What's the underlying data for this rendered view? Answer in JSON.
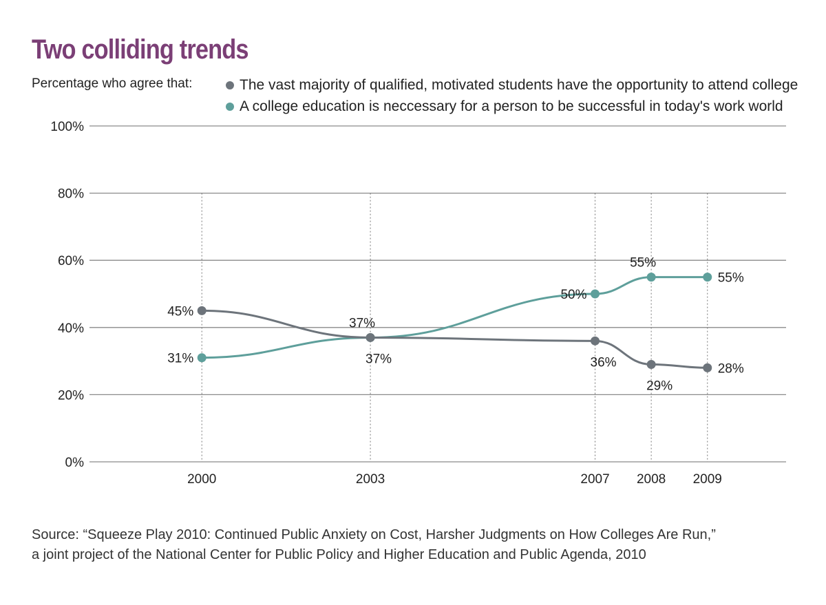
{
  "title": "Two colliding trends",
  "subtitle": "Percentage who agree that:",
  "source": {
    "line1": "Source: “Squeeze Play 2010: Continued Public Anxiety on Cost, Harsher Judgments on How Colleges Are Run,”",
    "line2": "a joint project of the National Center for Public Policy and Higher Education and Public Agenda, 2010"
  },
  "colors": {
    "title": "#7b3f76",
    "series_opportunity": "#6d747b",
    "series_necessary": "#5e9f9b",
    "grid": "#8a8a8a",
    "text": "#222222"
  },
  "chart_data": {
    "type": "line",
    "title": "Two colliding trends",
    "x": [
      2000,
      2003,
      2007,
      2008,
      2009
    ],
    "x_tick_labels": [
      "2000",
      "2003",
      "2007",
      "2008",
      "2009"
    ],
    "xlim": [
      1998,
      2010.4
    ],
    "ylim": [
      0,
      100
    ],
    "y_ticks": [
      0,
      20,
      40,
      60,
      80,
      100
    ],
    "y_tick_labels": [
      "0%",
      "20%",
      "40%",
      "60%",
      "80%",
      "100%"
    ],
    "grid": "horizontal",
    "legend_position": "top",
    "series": [
      {
        "name": "The vast majority of qualified, motivated students have the opportunity to attend college",
        "color": "#6d747b",
        "values": [
          45,
          37,
          36,
          29,
          28
        ],
        "labels": [
          "45%",
          "37%",
          "36%",
          "29%",
          "28%"
        ],
        "label_side": [
          "left",
          "below",
          "below",
          "below",
          "right"
        ]
      },
      {
        "name": "A college education is neccessary for a person to be successful in today's work world",
        "color": "#5e9f9b",
        "values": [
          31,
          37,
          50,
          55,
          55
        ],
        "labels": [
          "31%",
          "37%",
          "50%",
          "55%",
          "55%"
        ],
        "label_side": [
          "left",
          "above",
          "left",
          "above",
          "right"
        ]
      }
    ]
  }
}
